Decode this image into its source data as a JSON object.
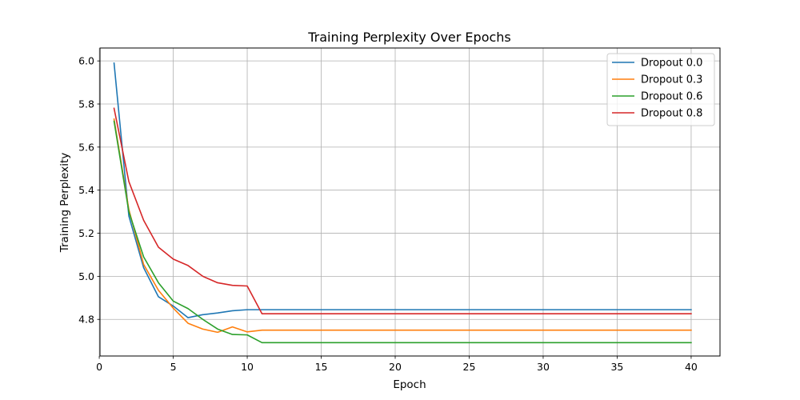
{
  "chart_data": {
    "type": "line",
    "title": "Training Perplexity Over Epochs",
    "xlabel": "Epoch",
    "ylabel": "Training Perplexity",
    "xlim": [
      0.05,
      41.95
    ],
    "ylim": [
      4.63,
      6.06
    ],
    "xticks": [
      0,
      5,
      10,
      15,
      20,
      25,
      30,
      35,
      40
    ],
    "yticks": [
      4.8,
      5.0,
      5.2,
      5.4,
      5.6,
      5.8,
      6.0
    ],
    "ytick_labels": [
      "4.8",
      "5.0",
      "5.2",
      "5.4",
      "5.6",
      "5.8",
      "6.0"
    ],
    "grid": true,
    "legend_position": "top-right",
    "x": [
      1,
      2,
      3,
      4,
      5,
      6,
      7,
      8,
      9,
      10,
      11,
      12,
      13,
      14,
      15,
      16,
      17,
      18,
      19,
      20,
      21,
      22,
      23,
      24,
      25,
      26,
      27,
      28,
      29,
      30,
      31,
      32,
      33,
      34,
      35,
      36,
      37,
      38,
      39,
      40
    ],
    "series": [
      {
        "name": "Dropout 0.0",
        "color": "#1f77b4",
        "values": [
          5.99,
          5.28,
          5.04,
          4.905,
          4.862,
          4.808,
          4.822,
          4.83,
          4.84,
          4.845,
          4.845,
          4.845,
          4.845,
          4.845,
          4.845,
          4.845,
          4.845,
          4.845,
          4.845,
          4.845,
          4.845,
          4.845,
          4.845,
          4.845,
          4.845,
          4.845,
          4.845,
          4.845,
          4.845,
          4.845,
          4.845,
          4.845,
          4.845,
          4.845,
          4.845,
          4.845,
          4.845,
          4.845,
          4.845,
          4.845
        ]
      },
      {
        "name": "Dropout 0.3",
        "color": "#ff7f0e",
        "values": [
          5.73,
          5.31,
          5.055,
          4.935,
          4.852,
          4.782,
          4.755,
          4.74,
          4.765,
          4.742,
          4.75,
          4.75,
          4.75,
          4.75,
          4.75,
          4.75,
          4.75,
          4.75,
          4.75,
          4.75,
          4.75,
          4.75,
          4.75,
          4.75,
          4.75,
          4.75,
          4.75,
          4.75,
          4.75,
          4.75,
          4.75,
          4.75,
          4.75,
          4.75,
          4.75,
          4.75,
          4.75,
          4.75,
          4.75,
          4.75
        ]
      },
      {
        "name": "Dropout 0.6",
        "color": "#2ca02c",
        "values": [
          5.72,
          5.3,
          5.09,
          4.97,
          4.885,
          4.85,
          4.8,
          4.755,
          4.73,
          4.728,
          4.692,
          4.692,
          4.692,
          4.692,
          4.692,
          4.692,
          4.692,
          4.692,
          4.692,
          4.692,
          4.692,
          4.692,
          4.692,
          4.692,
          4.692,
          4.692,
          4.692,
          4.692,
          4.692,
          4.692,
          4.692,
          4.692,
          4.692,
          4.692,
          4.692,
          4.692,
          4.692,
          4.692,
          4.692,
          4.692
        ]
      },
      {
        "name": "Dropout 0.8",
        "color": "#d62728",
        "values": [
          5.78,
          5.44,
          5.26,
          5.135,
          5.08,
          5.05,
          5.0,
          4.97,
          4.958,
          4.955,
          4.826,
          4.826,
          4.826,
          4.826,
          4.826,
          4.826,
          4.826,
          4.826,
          4.826,
          4.826,
          4.826,
          4.826,
          4.826,
          4.826,
          4.826,
          4.826,
          4.826,
          4.826,
          4.826,
          4.826,
          4.826,
          4.826,
          4.826,
          4.826,
          4.826,
          4.826,
          4.826,
          4.826,
          4.826,
          4.826
        ]
      }
    ]
  }
}
